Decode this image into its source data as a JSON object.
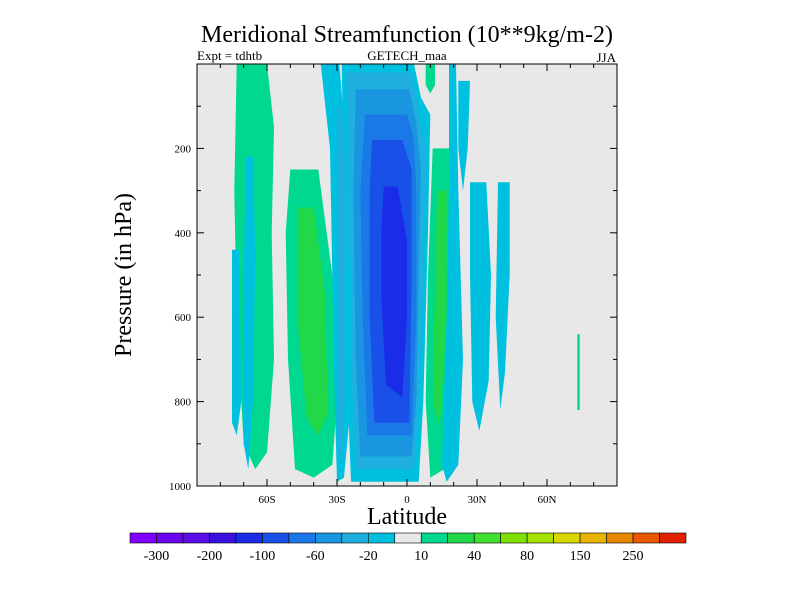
{
  "chart_data": {
    "type": "heatmap",
    "title": "Meridional Streamfunction (10**9kg/m-2)",
    "left_label": "Expt = tdhtb",
    "center_label": "GETECH_maa",
    "right_label": "JJA",
    "xlabel": "Latitude",
    "ylabel": "Pressure (in hPa)",
    "xlim": [
      -90,
      90
    ],
    "ylim": [
      1000,
      0
    ],
    "x_ticks": [
      {
        "value": -60,
        "label": "60S"
      },
      {
        "value": -30,
        "label": "30S"
      },
      {
        "value": 0,
        "label": "0"
      },
      {
        "value": 30,
        "label": "30N"
      },
      {
        "value": 60,
        "label": "60N"
      }
    ],
    "y_ticks": [
      {
        "value": 200,
        "label": "200"
      },
      {
        "value": 400,
        "label": "400"
      },
      {
        "value": 600,
        "label": "600"
      },
      {
        "value": 800,
        "label": "800"
      },
      {
        "value": 1000,
        "label": "1000"
      }
    ],
    "colorbar": {
      "levels": [
        -300,
        -250,
        -200,
        -150,
        -100,
        -80,
        -60,
        -40,
        -20,
        -10,
        10,
        20,
        40,
        60,
        80,
        100,
        150,
        200,
        250,
        300
      ],
      "labels": [
        "-300",
        "-200",
        "-100",
        "-60",
        "-20",
        "10",
        "40",
        "80",
        "150",
        "250"
      ],
      "colors": [
        "#8000ff",
        "#6a05f0",
        "#5b0ee6",
        "#3b10e0",
        "#1a2ce8",
        "#1850e8",
        "#1a78e8",
        "#1a96e0",
        "#20b0e0",
        "#00c0e0",
        "#e8e8e8",
        "#00d890",
        "#20d848",
        "#40e030",
        "#80e000",
        "#a8e000",
        "#d8d800",
        "#e8b400",
        "#e88800",
        "#e85800",
        "#e02000"
      ]
    },
    "background_color": "#e8e8e8",
    "contour_regions": [
      {
        "level": 10,
        "polygon": [
          [
            -73,
            0
          ],
          [
            -60,
            0
          ],
          [
            -57,
            150
          ],
          [
            -58,
            400
          ],
          [
            -57,
            700
          ],
          [
            -60,
            920
          ],
          [
            -65,
            960
          ],
          [
            -70,
            900
          ],
          [
            -73,
            600
          ],
          [
            -74,
            300
          ]
        ]
      },
      {
        "level": 10,
        "polygon": [
          [
            -50,
            250
          ],
          [
            -38,
            250
          ],
          [
            -32,
            500
          ],
          [
            -30,
            800
          ],
          [
            -32,
            950
          ],
          [
            -40,
            980
          ],
          [
            -48,
            960
          ],
          [
            -51,
            700
          ],
          [
            -52,
            400
          ]
        ]
      },
      {
        "level": 20,
        "polygon": [
          [
            -47,
            340
          ],
          [
            -40,
            340
          ],
          [
            -35,
            550
          ],
          [
            -34,
            830
          ],
          [
            -38,
            880
          ],
          [
            -43,
            840
          ],
          [
            -47,
            600
          ]
        ]
      },
      {
        "level": 10,
        "polygon": [
          [
            11,
            200
          ],
          [
            19,
            200
          ],
          [
            20,
            500
          ],
          [
            19,
            800
          ],
          [
            16,
            960
          ],
          [
            10,
            980
          ],
          [
            8,
            800
          ],
          [
            9,
            500
          ]
        ]
      },
      {
        "level": 20,
        "polygon": [
          [
            13,
            300
          ],
          [
            17,
            300
          ],
          [
            17,
            600
          ],
          [
            14,
            860
          ],
          [
            11,
            800
          ],
          [
            12,
            500
          ]
        ]
      },
      {
        "level": 10,
        "polygon": [
          [
            8,
            0
          ],
          [
            12,
            0
          ],
          [
            12,
            50
          ],
          [
            10,
            70
          ],
          [
            8,
            50
          ]
        ]
      },
      {
        "level": 10,
        "polygon": [
          [
            73,
            640
          ],
          [
            74,
            640
          ],
          [
            74,
            820
          ],
          [
            73,
            820
          ]
        ]
      },
      {
        "level": -10,
        "polygon": [
          [
            -28,
            0
          ],
          [
            3,
            0
          ],
          [
            6,
            80
          ],
          [
            10,
            120
          ],
          [
            9,
            400
          ],
          [
            7,
            800
          ],
          [
            5,
            990
          ],
          [
            -24,
            990
          ],
          [
            -26,
            700
          ],
          [
            -27,
            300
          ]
        ]
      },
      {
        "level": -20,
        "polygon": [
          [
            -26,
            20
          ],
          [
            2,
            20
          ],
          [
            5,
            120
          ],
          [
            8,
            200
          ],
          [
            7,
            500
          ],
          [
            5,
            800
          ],
          [
            3,
            960
          ],
          [
            -22,
            960
          ],
          [
            -24,
            700
          ],
          [
            -25,
            300
          ]
        ]
      },
      {
        "level": -40,
        "polygon": [
          [
            -22,
            60
          ],
          [
            1,
            60
          ],
          [
            4,
            140
          ],
          [
            6,
            250
          ],
          [
            5,
            500
          ],
          [
            4,
            800
          ],
          [
            2,
            930
          ],
          [
            -20,
            930
          ],
          [
            -22,
            700
          ],
          [
            -23,
            300
          ]
        ]
      },
      {
        "level": -60,
        "polygon": [
          [
            -18,
            120
          ],
          [
            0,
            120
          ],
          [
            3,
            180
          ],
          [
            4,
            300
          ],
          [
            4,
            600
          ],
          [
            2,
            880
          ],
          [
            -17,
            880
          ],
          [
            -19,
            600
          ],
          [
            -20,
            300
          ]
        ]
      },
      {
        "level": -80,
        "polygon": [
          [
            -15,
            180
          ],
          [
            -2,
            180
          ],
          [
            2,
            250
          ],
          [
            2,
            500
          ],
          [
            1,
            850
          ],
          [
            -14,
            850
          ],
          [
            -16,
            600
          ],
          [
            -16,
            300
          ]
        ]
      },
      {
        "level": -100,
        "polygon": [
          [
            -10,
            290
          ],
          [
            -4,
            290
          ],
          [
            0,
            420
          ],
          [
            0,
            600
          ],
          [
            -2,
            790
          ],
          [
            -9,
            760
          ],
          [
            -11,
            550
          ],
          [
            -11,
            400
          ]
        ]
      },
      {
        "level": -10,
        "polygon": [
          [
            -75,
            440
          ],
          [
            -72,
            440
          ],
          [
            -71,
            800
          ],
          [
            -73,
            880
          ],
          [
            -75,
            850
          ]
        ]
      },
      {
        "level": -10,
        "polygon": [
          [
            -69,
            220
          ],
          [
            -66,
            220
          ],
          [
            -65,
            450
          ],
          [
            -66,
            800
          ],
          [
            -68,
            960
          ],
          [
            -70,
            900
          ],
          [
            -70,
            500
          ]
        ]
      },
      {
        "level": -10,
        "polygon": [
          [
            18,
            0
          ],
          [
            21,
            0
          ],
          [
            22,
            300
          ],
          [
            24,
            700
          ],
          [
            22,
            950
          ],
          [
            17,
            990
          ],
          [
            15,
            950
          ],
          [
            17,
            600
          ],
          [
            18,
            300
          ]
        ]
      },
      {
        "level": -10,
        "polygon": [
          [
            22,
            40
          ],
          [
            27,
            40
          ],
          [
            26,
            200
          ],
          [
            24,
            300
          ],
          [
            22,
            200
          ]
        ]
      },
      {
        "level": -10,
        "polygon": [
          [
            27,
            280
          ],
          [
            34,
            280
          ],
          [
            36,
            500
          ],
          [
            35,
            750
          ],
          [
            31,
            870
          ],
          [
            28,
            800
          ],
          [
            27,
            500
          ]
        ]
      },
      {
        "level": -10,
        "polygon": [
          [
            39,
            280
          ],
          [
            44,
            280
          ],
          [
            44,
            500
          ],
          [
            42,
            730
          ],
          [
            40,
            820
          ],
          [
            38,
            600
          ]
        ]
      },
      {
        "level": -10,
        "polygon": [
          [
            -37,
            0
          ],
          [
            -29,
            0
          ],
          [
            -26,
            200
          ],
          [
            -24,
            500
          ],
          [
            -24,
            800
          ],
          [
            -27,
            980
          ],
          [
            -30,
            990
          ],
          [
            -31,
            800
          ],
          [
            -32,
            500
          ],
          [
            -33,
            200
          ]
        ]
      },
      {
        "level": -20,
        "polygon": [
          [
            -30,
            100
          ],
          [
            -28,
            100
          ],
          [
            -26,
            300
          ],
          [
            -26,
            700
          ],
          [
            -28,
            950
          ],
          [
            -30,
            900
          ],
          [
            -30,
            500
          ]
        ]
      }
    ]
  }
}
